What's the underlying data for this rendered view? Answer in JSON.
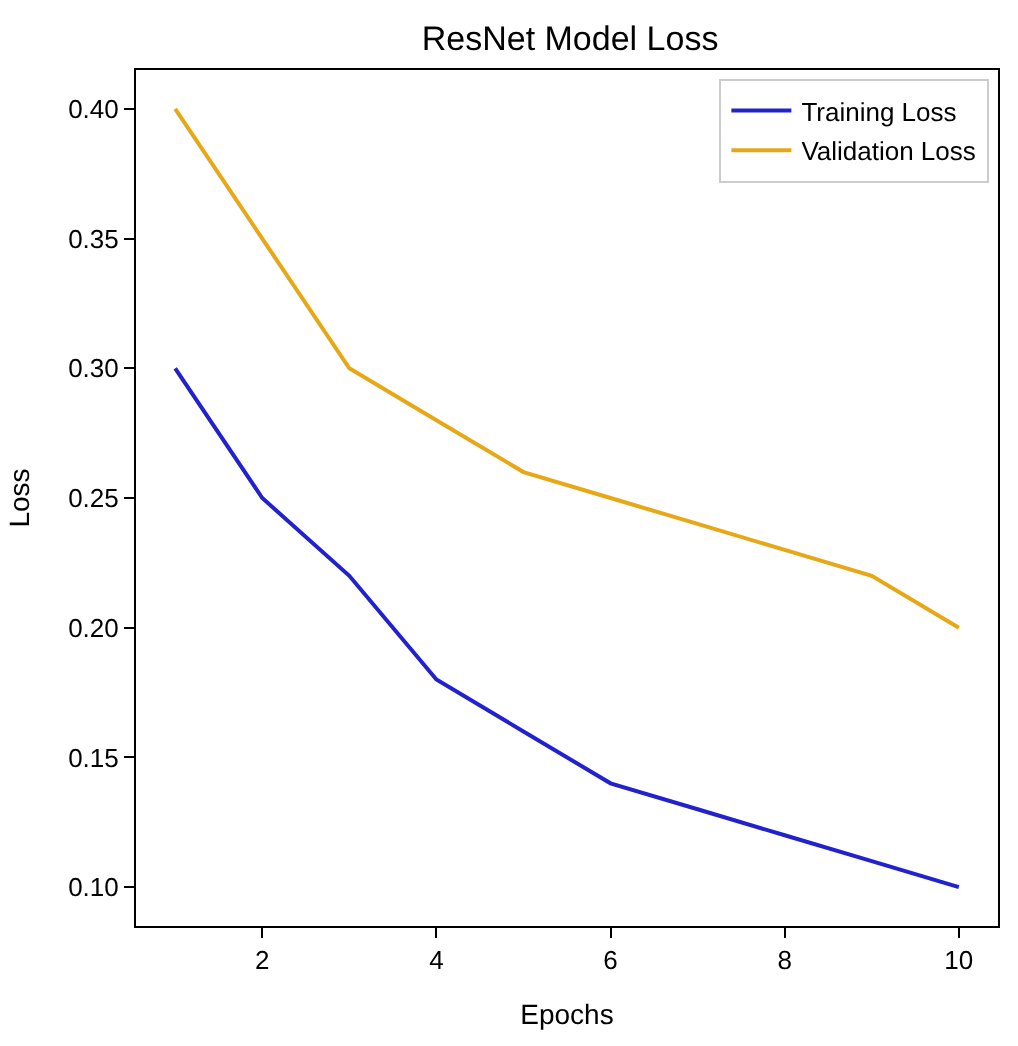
{
  "chart_data": {
    "type": "line",
    "title": "ResNet Model Loss",
    "xlabel": "Epochs",
    "ylabel": "Loss",
    "x": [
      1,
      2,
      3,
      4,
      5,
      6,
      7,
      8,
      9,
      10
    ],
    "series": [
      {
        "name": "Training Loss",
        "color": "#2222cc",
        "values": [
          0.3,
          0.25,
          0.22,
          0.18,
          0.16,
          0.14,
          0.13,
          0.12,
          0.11,
          0.1
        ]
      },
      {
        "name": "Validation Loss",
        "color": "#e6a817",
        "values": [
          0.4,
          0.35,
          0.3,
          0.28,
          0.26,
          0.25,
          0.24,
          0.23,
          0.22,
          0.2
        ]
      }
    ],
    "xlim": [
      0.55,
      10.45
    ],
    "xticks": [
      2,
      4,
      6,
      8,
      10
    ],
    "ylim": [
      0.085,
      0.415
    ],
    "yticks": [
      {
        "value": 0.1,
        "label": "0.10"
      },
      {
        "value": 0.15,
        "label": "0.15"
      },
      {
        "value": 0.2,
        "label": "0.20"
      },
      {
        "value": 0.25,
        "label": "0.25"
      },
      {
        "value": 0.3,
        "label": "0.30"
      },
      {
        "value": 0.35,
        "label": "0.35"
      },
      {
        "value": 0.4,
        "label": "0.40"
      }
    ],
    "legend": "top right",
    "marker": "none",
    "line_style": "solid"
  }
}
